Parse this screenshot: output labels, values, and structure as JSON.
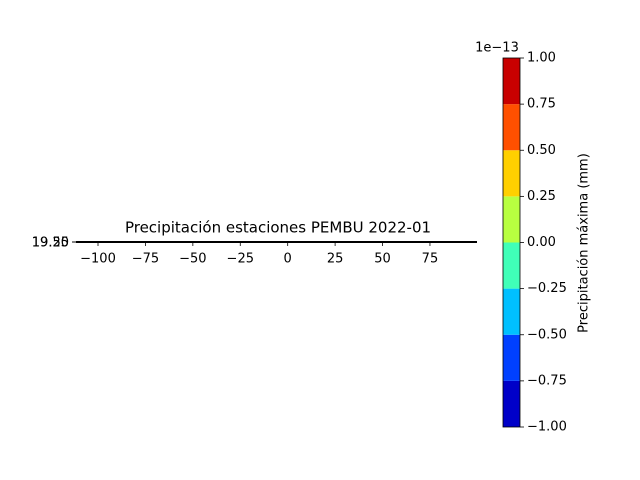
{
  "chart_data": {
    "type": "map",
    "title": "Precipitación estaciones PEMBU 2022-01",
    "xlim": [
      -111.6,
      99.8
    ],
    "xticks": [
      {
        "value": -100,
        "label": "−100"
      },
      {
        "value": -75,
        "label": "−75"
      },
      {
        "value": -50,
        "label": "−50"
      },
      {
        "value": -25,
        "label": "−25"
      },
      0,
      25,
      50,
      75
    ],
    "ylim": [
      19.25,
      19.5
    ],
    "yticks": [
      19.25,
      {
        "value": 19.5,
        "label": "19.50"
      }
    ],
    "colorbar": {
      "label": "Precipitación máxima (mm)",
      "offset_text": "1e−13",
      "ticks": [
        {
          "value": -1.0,
          "label": "−1.00"
        },
        {
          "value": -0.75,
          "label": "−0.75"
        },
        {
          "value": -0.5,
          "label": "−0.50"
        },
        {
          "value": -0.25,
          "label": "−0.25"
        },
        {
          "value": 0.0,
          "label": "0.00"
        },
        {
          "value": 0.25,
          "label": "0.25"
        },
        {
          "value": 0.5,
          "label": "0.50"
        },
        {
          "value": 0.75,
          "label": "0.75"
        },
        {
          "value": 1.0,
          "label": "1.00"
        }
      ],
      "colors": [
        "#0000c8",
        "#0040ff",
        "#00c0ff",
        "#40ffb8",
        "#b8ff40",
        "#ffd000",
        "#ff5000",
        "#c80000"
      ]
    }
  }
}
